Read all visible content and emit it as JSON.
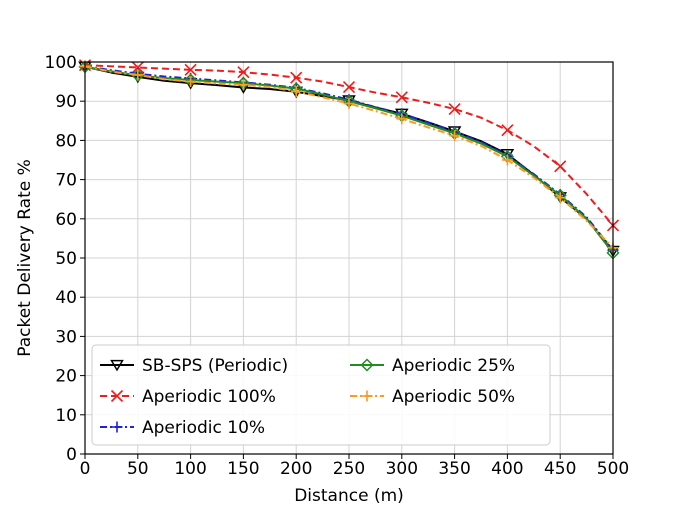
{
  "chart_data": {
    "type": "line",
    "title": "",
    "xlabel": "Distance (m)",
    "ylabel": "Packet Delivery Rate %",
    "xlim": [
      0,
      500
    ],
    "ylim": [
      0,
      100
    ],
    "xticks": [
      0,
      50,
      100,
      150,
      200,
      250,
      300,
      350,
      400,
      450,
      500
    ],
    "yticks": [
      0,
      10,
      20,
      30,
      40,
      50,
      60,
      70,
      80,
      90,
      100
    ],
    "grid": true,
    "legend_position": "bottom-left",
    "series": [
      {
        "name": "SB-SPS (Periodic)",
        "color": "#000000",
        "dash": "solid",
        "marker": "triangle-down",
        "x": [
          0,
          25,
          50,
          75,
          100,
          125,
          150,
          175,
          200,
          225,
          250,
          275,
          300,
          325,
          350,
          375,
          400,
          425,
          450,
          475,
          500
        ],
        "y": [
          98.8,
          97.3,
          96.2,
          95.2,
          94.6,
          94.1,
          93.5,
          93.1,
          92.4,
          91.3,
          90.2,
          88.4,
          86.8,
          84.6,
          82.3,
          79.8,
          76.5,
          71.2,
          65.5,
          60.0,
          51.8
        ]
      },
      {
        "name": "Aperiodic 100%",
        "color": "#ee1c1c",
        "dash": "dashed",
        "marker": "x",
        "x": [
          0,
          25,
          50,
          75,
          100,
          125,
          150,
          175,
          200,
          225,
          250,
          275,
          300,
          325,
          350,
          375,
          400,
          425,
          450,
          475,
          500
        ],
        "y": [
          99.2,
          98.9,
          98.6,
          98.3,
          98.0,
          97.8,
          97.4,
          96.8,
          96.0,
          95.0,
          93.6,
          92.2,
          91.0,
          89.6,
          88.0,
          85.8,
          82.6,
          78.5,
          73.4,
          66.3,
          58.3
        ]
      },
      {
        "name": "Aperiodic 10%",
        "color": "#1f1fe6",
        "dash": "dashdot",
        "marker": "plus",
        "x": [
          0,
          25,
          50,
          75,
          100,
          125,
          150,
          175,
          200,
          225,
          250,
          275,
          300,
          325,
          350,
          375,
          400,
          425,
          450,
          475,
          500
        ],
        "y": [
          98.9,
          97.9,
          97.0,
          96.3,
          95.8,
          95.3,
          94.8,
          94.2,
          93.4,
          92.0,
          90.4,
          88.5,
          86.8,
          84.5,
          82.2,
          79.6,
          76.2,
          71.4,
          66.2,
          60.4,
          52.0
        ]
      },
      {
        "name": "Aperiodic 25%",
        "color": "#228b22",
        "dash": "solid",
        "marker": "diamond",
        "x": [
          0,
          25,
          50,
          75,
          100,
          125,
          150,
          175,
          200,
          225,
          250,
          275,
          300,
          325,
          350,
          375,
          400,
          425,
          450,
          475,
          500
        ],
        "y": [
          98.8,
          97.6,
          96.6,
          95.9,
          95.4,
          95.0,
          94.6,
          94.0,
          93.2,
          91.7,
          90.0,
          88.2,
          86.3,
          84.0,
          81.8,
          79.2,
          75.9,
          71.0,
          66.0,
          60.0,
          51.3
        ]
      },
      {
        "name": "Aperiodic 50%",
        "color": "#ff9a1f",
        "dash": "dashdot",
        "marker": "plus",
        "x": [
          0,
          25,
          50,
          75,
          100,
          125,
          150,
          175,
          200,
          225,
          250,
          275,
          300,
          325,
          350,
          375,
          400,
          425,
          450,
          475,
          500
        ],
        "y": [
          98.9,
          97.5,
          96.7,
          95.6,
          95.0,
          94.5,
          94.2,
          93.6,
          92.5,
          91.0,
          89.4,
          87.5,
          85.5,
          83.3,
          81.2,
          78.6,
          75.0,
          70.5,
          65.4,
          59.5,
          52.6
        ]
      }
    ]
  }
}
